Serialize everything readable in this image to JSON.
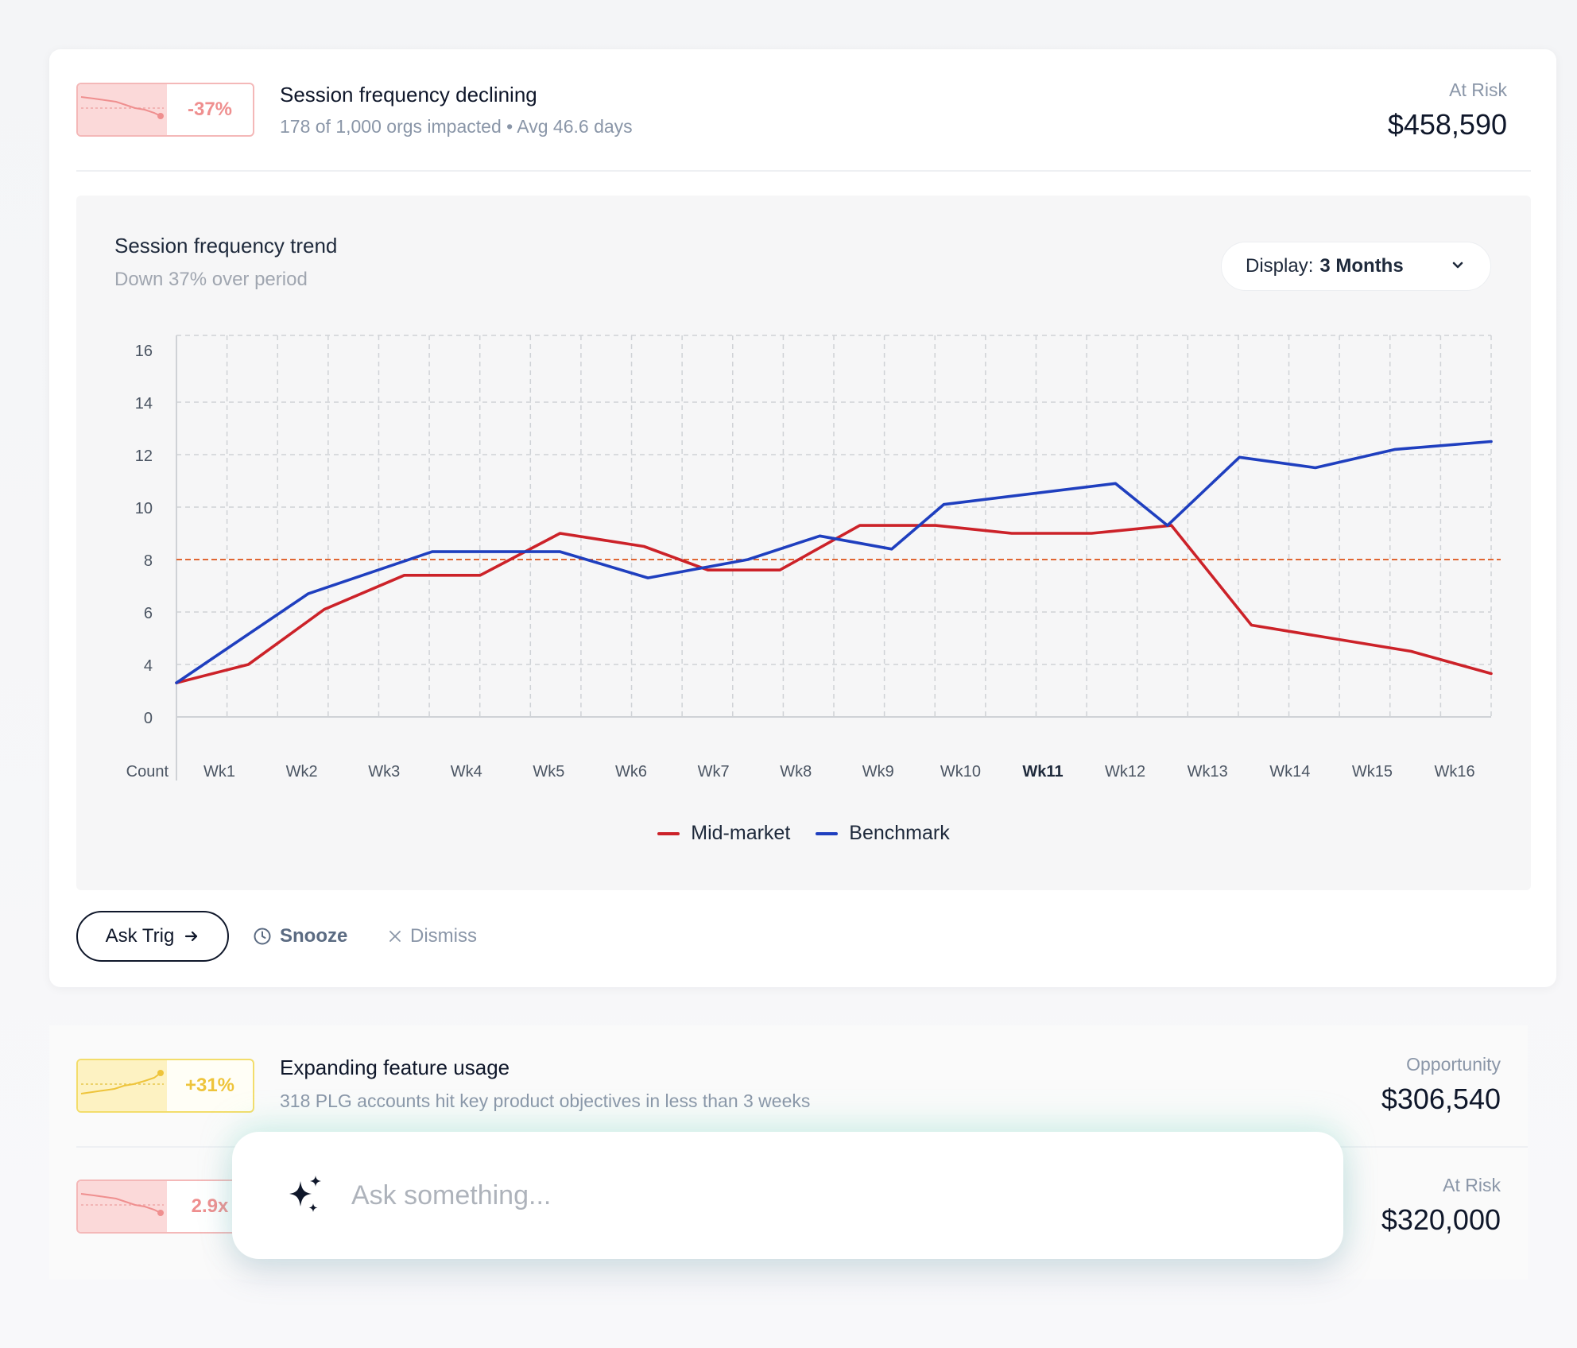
{
  "colors": {
    "red": "#cc2229",
    "blue": "#1f3fbf",
    "threshold": "#e0541a",
    "spark_red": "#ef8f8f",
    "spark_yellow": "#eec43b"
  },
  "alerts": [
    {
      "badge": "-37%",
      "title": "Session frequency declining",
      "subtitle": "178 of 1,000 orgs impacted • Avg 46.6 days",
      "metric_label": "At Risk",
      "metric_value": "$458,590"
    },
    {
      "badge": "+31%",
      "title": "Expanding feature usage",
      "subtitle": "318 PLG accounts hit key product objectives in less than 3 weeks",
      "metric_label": "Opportunity",
      "metric_value": "$306,540"
    },
    {
      "badge": "2.9x",
      "metric_label": "At Risk",
      "metric_value": "$320,000"
    }
  ],
  "chart_panel": {
    "title": "Session frequency trend",
    "subtitle": "Down 37% over period",
    "display_label": "Display:",
    "display_value": "3 Months"
  },
  "chart_data": {
    "type": "line",
    "x_categories": [
      "Wk1",
      "Wk2",
      "Wk3",
      "Wk4",
      "Wk5",
      "Wk6",
      "Wk7",
      "Wk8",
      "Wk9",
      "Wk10",
      "Wk11",
      "Wk12",
      "Wk13",
      "Wk14",
      "Wk15",
      "Wk16"
    ],
    "highlighted_category": "Wk11",
    "y_ticks": [
      0,
      4,
      6,
      8,
      10,
      12,
      14,
      16
    ],
    "ylabel": "Count",
    "threshold": 8,
    "grid": true,
    "legend_position": "bottom-center",
    "series": [
      {
        "name": "Mid-market",
        "color": "#cc2229",
        "points": [
          [
            0.0,
            2.6
          ],
          [
            0.9,
            4.0
          ],
          [
            1.85,
            6.1
          ],
          [
            2.85,
            7.4
          ],
          [
            3.8,
            7.4
          ],
          [
            4.8,
            9.0
          ],
          [
            5.85,
            8.5
          ],
          [
            6.65,
            7.6
          ],
          [
            7.55,
            7.6
          ],
          [
            8.55,
            9.3
          ],
          [
            9.5,
            9.3
          ],
          [
            10.45,
            9.0
          ],
          [
            11.45,
            9.0
          ],
          [
            12.45,
            9.3
          ],
          [
            13.45,
            5.5
          ],
          [
            14.45,
            5.0
          ],
          [
            15.45,
            4.5
          ],
          [
            16.45,
            3.3
          ]
        ]
      },
      {
        "name": "Benchmark",
        "color": "#1f3fbf",
        "points": [
          [
            0.0,
            2.6
          ],
          [
            1.65,
            6.7
          ],
          [
            3.2,
            8.3
          ],
          [
            4.8,
            8.3
          ],
          [
            5.9,
            7.3
          ],
          [
            7.15,
            8.0
          ],
          [
            8.05,
            8.9
          ],
          [
            8.95,
            8.4
          ],
          [
            9.6,
            10.1
          ],
          [
            11.75,
            10.9
          ],
          [
            12.4,
            9.3
          ],
          [
            13.3,
            11.9
          ],
          [
            14.25,
            11.5
          ],
          [
            15.25,
            12.2
          ],
          [
            16.45,
            12.5
          ]
        ]
      }
    ]
  },
  "actions": {
    "ask": "Ask Trig",
    "snooze": "Snooze",
    "dismiss": "Dismiss"
  },
  "ask_bar": {
    "placeholder": "Ask something..."
  }
}
